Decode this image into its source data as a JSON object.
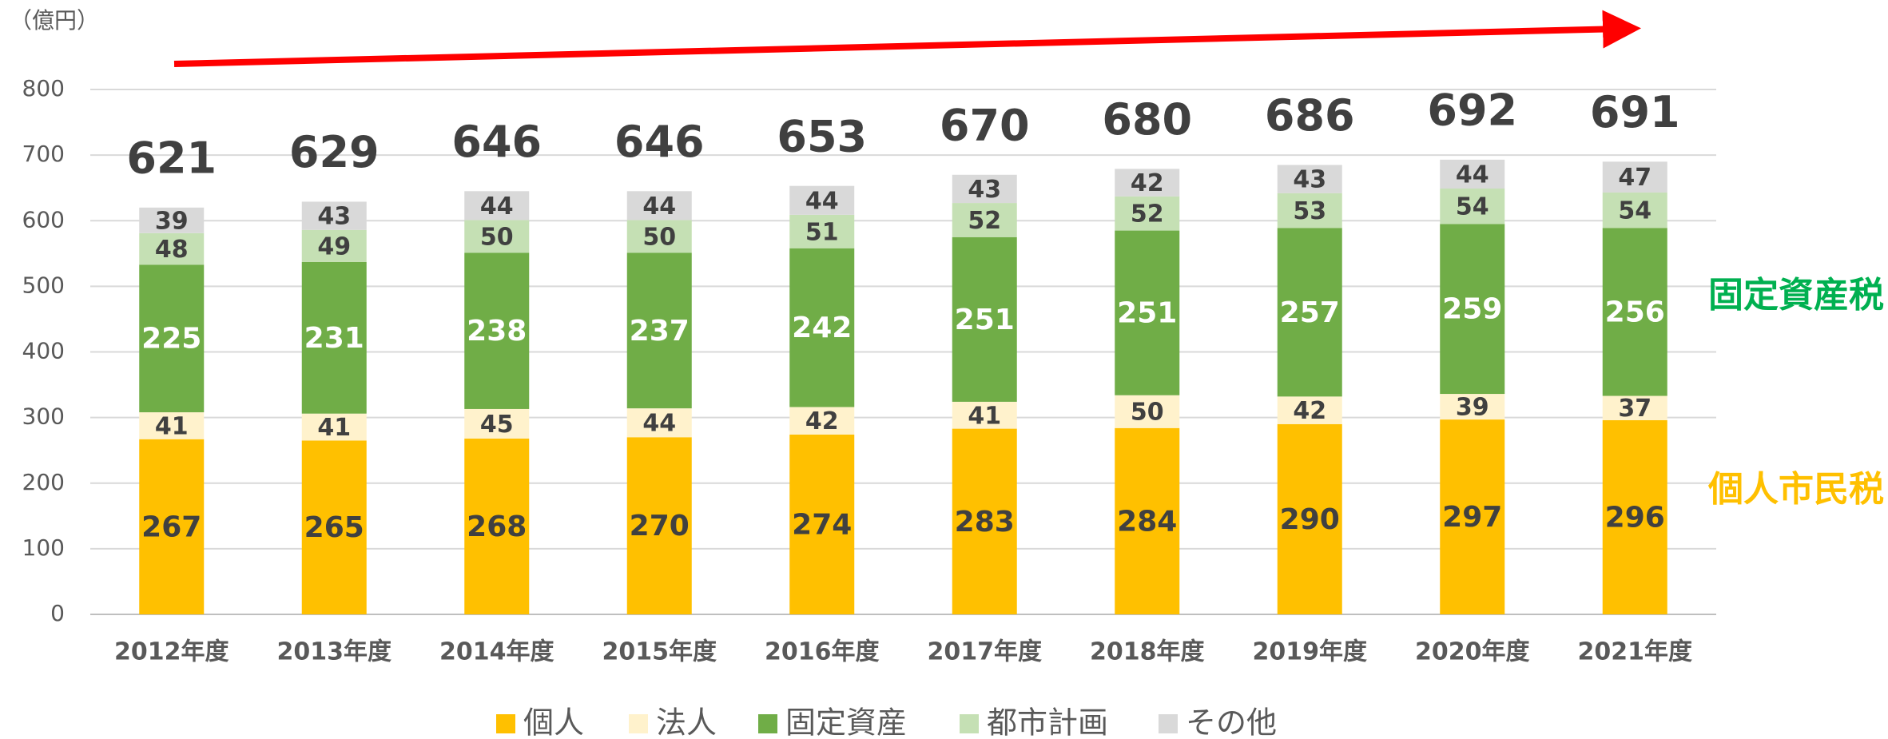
{
  "chart_data": {
    "type": "stacked-bar",
    "unit_label": "（億円）",
    "categories": [
      "2012年度",
      "2013年度",
      "2014年度",
      "2015年度",
      "2016年度",
      "2017年度",
      "2018年度",
      "2019年度",
      "2020年度",
      "2021年度"
    ],
    "series": [
      {
        "name": "個人",
        "color": "#FFC000",
        "label_color": "#404040",
        "values": [
          267,
          265,
          268,
          270,
          274,
          283,
          284,
          290,
          297,
          296
        ]
      },
      {
        "name": "法人",
        "color": "#FFF2CC",
        "label_color": "#404040",
        "values": [
          41,
          41,
          45,
          44,
          42,
          41,
          50,
          42,
          39,
          37
        ]
      },
      {
        "name": "固定資産",
        "color": "#70AD47",
        "label_color": "#FFFFFF",
        "values": [
          225,
          231,
          238,
          237,
          242,
          251,
          251,
          257,
          259,
          256
        ]
      },
      {
        "name": "都市計画",
        "color": "#C5E0B4",
        "label_color": "#404040",
        "values": [
          48,
          49,
          50,
          50,
          51,
          52,
          52,
          53,
          54,
          54
        ]
      },
      {
        "name": "その他",
        "color": "#D9D9D9",
        "label_color": "#404040",
        "values": [
          39,
          43,
          44,
          44,
          44,
          43,
          42,
          43,
          44,
          47
        ]
      }
    ],
    "totals": [
      621,
      629,
      646,
      646,
      653,
      670,
      680,
      686,
      692,
      691
    ],
    "annotations": [
      {
        "text": "固定資産税",
        "color": "#00B050"
      },
      {
        "text": "個人市民税",
        "color": "#FFC000"
      }
    ],
    "ylim": [
      0,
      800
    ],
    "yticks": [
      0,
      100,
      200,
      300,
      400,
      500,
      600,
      700,
      800
    ],
    "grid": true
  }
}
